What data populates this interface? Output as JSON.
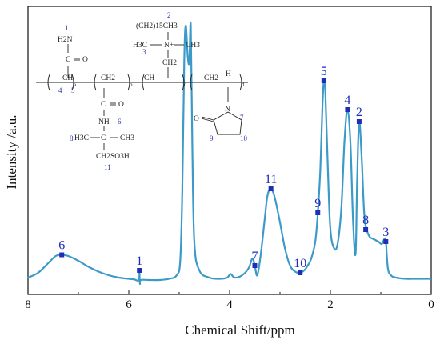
{
  "chart_data": {
    "type": "line",
    "title": "",
    "xlabel": "Chemical Shift/ppm",
    "ylabel": "Intensity /a.u.",
    "xlim": [
      8,
      0
    ],
    "x_reversed": true,
    "ylim": [
      0,
      1
    ],
    "x_ticks": [
      8,
      6,
      4,
      2,
      0
    ],
    "y_ticks_shown": false,
    "grid": false,
    "legend": "none",
    "line_color": "#3b9ac8",
    "marker_color": "#1f2db8",
    "series": [
      {
        "values_note": "",
        "points": [
          [
            8.0,
            0.05
          ],
          [
            7.8,
            0.07
          ],
          [
            7.6,
            0.11
          ],
          [
            7.45,
            0.14
          ],
          [
            7.33,
            0.145
          ],
          [
            7.2,
            0.14
          ],
          [
            7.0,
            0.12
          ],
          [
            6.8,
            0.095
          ],
          [
            6.6,
            0.075
          ],
          [
            6.4,
            0.06
          ],
          [
            6.2,
            0.05
          ],
          [
            6.0,
            0.045
          ],
          [
            5.9,
            0.043
          ],
          [
            5.8,
            0.04
          ],
          [
            5.79,
            0.08
          ],
          [
            5.78,
            0.025
          ],
          [
            5.76,
            0.04
          ],
          [
            5.6,
            0.04
          ],
          [
            5.4,
            0.04
          ],
          [
            5.2,
            0.045
          ],
          [
            5.05,
            0.06
          ],
          [
            4.98,
            0.12
          ],
          [
            4.94,
            0.4
          ],
          [
            4.9,
            0.95
          ],
          [
            4.87,
            1.1
          ],
          [
            4.83,
            0.97
          ],
          [
            4.8,
            0.95
          ],
          [
            4.77,
            1.1
          ],
          [
            4.74,
            0.6
          ],
          [
            4.7,
            0.2
          ],
          [
            4.6,
            0.08
          ],
          [
            4.4,
            0.05
          ],
          [
            4.2,
            0.045
          ],
          [
            4.05,
            0.05
          ],
          [
            3.98,
            0.065
          ],
          [
            3.9,
            0.05
          ],
          [
            3.75,
            0.06
          ],
          [
            3.62,
            0.09
          ],
          [
            3.55,
            0.13
          ],
          [
            3.5,
            0.1
          ],
          [
            3.45,
            0.06
          ],
          [
            3.38,
            0.15
          ],
          [
            3.3,
            0.3
          ],
          [
            3.25,
            0.39
          ],
          [
            3.18,
            0.42
          ],
          [
            3.1,
            0.38
          ],
          [
            3.0,
            0.28
          ],
          [
            2.9,
            0.17
          ],
          [
            2.8,
            0.1
          ],
          [
            2.7,
            0.075
          ],
          [
            2.6,
            0.07
          ],
          [
            2.52,
            0.08
          ],
          [
            2.45,
            0.1
          ],
          [
            2.38,
            0.13
          ],
          [
            2.3,
            0.2
          ],
          [
            2.25,
            0.32
          ],
          [
            2.2,
            0.5
          ],
          [
            2.16,
            0.75
          ],
          [
            2.13,
            0.87
          ],
          [
            2.1,
            0.82
          ],
          [
            2.05,
            0.5
          ],
          [
            2.0,
            0.25
          ],
          [
            1.92,
            0.17
          ],
          [
            1.85,
            0.2
          ],
          [
            1.78,
            0.35
          ],
          [
            1.72,
            0.62
          ],
          [
            1.66,
            0.75
          ],
          [
            1.6,
            0.6
          ],
          [
            1.55,
            0.28
          ],
          [
            1.5,
            0.15
          ],
          [
            1.47,
            0.45
          ],
          [
            1.43,
            0.7
          ],
          [
            1.38,
            0.55
          ],
          [
            1.33,
            0.32
          ],
          [
            1.28,
            0.25
          ],
          [
            1.22,
            0.22
          ],
          [
            1.14,
            0.21
          ],
          [
            1.05,
            0.2
          ],
          [
            0.98,
            0.19
          ],
          [
            0.93,
            0.21
          ],
          [
            0.9,
            0.2
          ],
          [
            0.86,
            0.09
          ],
          [
            0.8,
            0.06
          ],
          [
            0.7,
            0.05
          ],
          [
            0.5,
            0.045
          ],
          [
            0.3,
            0.045
          ],
          [
            0.0,
            0.045
          ]
        ]
      }
    ],
    "peaks": [
      {
        "label": "6",
        "x": 7.33,
        "y": 0.145
      },
      {
        "label": "1",
        "x": 5.79,
        "y": 0.08
      },
      {
        "label": "7",
        "x": 3.5,
        "y": 0.1
      },
      {
        "label": "11",
        "x": 3.18,
        "y": 0.42
      },
      {
        "label": "10",
        "x": 2.6,
        "y": 0.07
      },
      {
        "label": "9",
        "x": 2.25,
        "y": 0.32
      },
      {
        "label": "5",
        "x": 2.13,
        "y": 0.87
      },
      {
        "label": "4",
        "x": 1.66,
        "y": 0.75
      },
      {
        "label": "2",
        "x": 1.43,
        "y": 0.7
      },
      {
        "label": "8",
        "x": 1.3,
        "y": 0.25
      },
      {
        "label": "3",
        "x": 0.9,
        "y": 0.2
      }
    ]
  },
  "structure": {
    "atom_labels": {
      "nh2": "H2N",
      "co_carbonyl": "C",
      "o1": "O",
      "ch": "CH",
      "ch2": "CH2",
      "o2": "O",
      "nh": "NH",
      "h3c": "H3C",
      "c_quat": "C",
      "ch3": "CH3",
      "ch2so3h": "CH2SO3H",
      "n_plus": "N+",
      "ch3_r": "CH3",
      "chain_top": "(CH2)15CH3",
      "o3": "O",
      "n_ring": "N",
      "h_label": "H"
    },
    "subscripts": {
      "a": "a",
      "b": "b",
      "c": "c",
      "d": "d"
    },
    "numbers": [
      "1",
      "2",
      "3",
      "4",
      "5",
      "6",
      "7",
      "8",
      "9",
      "10",
      "11"
    ]
  }
}
